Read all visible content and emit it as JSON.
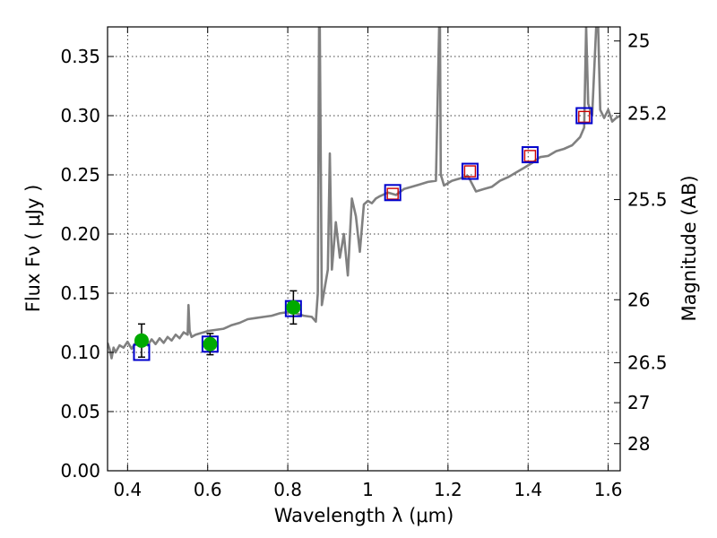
{
  "chart_data": {
    "type": "line",
    "xlabel": "Wavelength  λ (μm)",
    "ylabel": "Flux  Fν  ( μJy )",
    "y2label": "Magnitude (AB)",
    "xlim": [
      0.35,
      1.63
    ],
    "ylim": [
      0.0,
      0.375
    ],
    "grid": true,
    "x_ticks": [
      0.4,
      0.6,
      0.8,
      1.0,
      1.2,
      1.4,
      1.6
    ],
    "x_tick_labels": [
      "0.4",
      "0.6",
      "0.8",
      "1",
      "1.2",
      "1.4",
      "1.6"
    ],
    "y_ticks": [
      0.0,
      0.05,
      0.1,
      0.15,
      0.2,
      0.25,
      0.3,
      0.35
    ],
    "y_tick_labels": [
      "0.00",
      "0.05",
      "0.10",
      "0.15",
      "0.20",
      "0.25",
      "0.30",
      "0.35"
    ],
    "y2_ticks": [
      {
        "label": "25",
        "flux": 0.3631
      },
      {
        "label": "25.2",
        "flux": 0.302
      },
      {
        "label": "25.5",
        "flux": 0.2291
      },
      {
        "label": "26",
        "flux": 0.1445
      },
      {
        "label": "26.5",
        "flux": 0.0912
      },
      {
        "label": "27",
        "flux": 0.0575
      },
      {
        "label": "28",
        "flux": 0.0229
      }
    ],
    "spectrum": {
      "name": "model spectrum",
      "color": "#808080",
      "x": [
        0.35,
        0.355,
        0.36,
        0.365,
        0.37,
        0.38,
        0.39,
        0.4,
        0.41,
        0.42,
        0.43,
        0.44,
        0.45,
        0.46,
        0.47,
        0.48,
        0.49,
        0.5,
        0.51,
        0.52,
        0.53,
        0.54,
        0.55,
        0.552,
        0.555,
        0.56,
        0.57,
        0.58,
        0.59,
        0.6,
        0.62,
        0.64,
        0.66,
        0.68,
        0.7,
        0.72,
        0.74,
        0.76,
        0.78,
        0.8,
        0.82,
        0.84,
        0.86,
        0.87,
        0.875,
        0.878,
        0.88,
        0.885,
        0.89,
        0.9,
        0.905,
        0.91,
        0.915,
        0.92,
        0.93,
        0.94,
        0.95,
        0.96,
        0.97,
        0.98,
        0.99,
        1.0,
        1.01,
        1.02,
        1.03,
        1.05,
        1.07,
        1.09,
        1.11,
        1.13,
        1.15,
        1.17,
        1.178,
        1.18,
        1.182,
        1.185,
        1.19,
        1.21,
        1.23,
        1.25,
        1.27,
        1.29,
        1.31,
        1.33,
        1.35,
        1.37,
        1.39,
        1.41,
        1.43,
        1.45,
        1.47,
        1.49,
        1.51,
        1.53,
        1.54,
        1.545,
        1.55,
        1.56,
        1.57,
        1.575,
        1.58,
        1.59,
        1.6,
        1.61,
        1.62,
        1.63
      ],
      "y": [
        0.108,
        0.103,
        0.095,
        0.104,
        0.1,
        0.106,
        0.104,
        0.109,
        0.103,
        0.108,
        0.105,
        0.11,
        0.106,
        0.111,
        0.107,
        0.112,
        0.108,
        0.113,
        0.11,
        0.115,
        0.112,
        0.117,
        0.115,
        0.14,
        0.118,
        0.113,
        0.115,
        0.116,
        0.117,
        0.118,
        0.119,
        0.12,
        0.123,
        0.125,
        0.128,
        0.129,
        0.13,
        0.131,
        0.133,
        0.134,
        0.133,
        0.131,
        0.13,
        0.126,
        0.15,
        0.375,
        0.375,
        0.14,
        0.15,
        0.17,
        0.268,
        0.17,
        0.19,
        0.21,
        0.18,
        0.2,
        0.165,
        0.23,
        0.215,
        0.185,
        0.225,
        0.228,
        0.226,
        0.23,
        0.232,
        0.235,
        0.233,
        0.238,
        0.24,
        0.242,
        0.244,
        0.245,
        0.375,
        0.375,
        0.25,
        0.247,
        0.241,
        0.245,
        0.247,
        0.249,
        0.236,
        0.238,
        0.24,
        0.245,
        0.248,
        0.252,
        0.256,
        0.26,
        0.265,
        0.266,
        0.27,
        0.272,
        0.275,
        0.282,
        0.29,
        0.375,
        0.31,
        0.3,
        0.375,
        0.375,
        0.305,
        0.298,
        0.305,
        0.295,
        0.298,
        0.3
      ]
    },
    "series": [
      {
        "name": "photometry (green)",
        "color": "#00aa00",
        "x": [
          0.435,
          0.606,
          0.814
        ],
        "y": [
          0.11,
          0.107,
          0.138
        ],
        "yerr": [
          0.014,
          0.009,
          0.014
        ]
      },
      {
        "name": "model photometry (blue squares)",
        "color": "#0000cc",
        "x": [
          0.435,
          0.606,
          0.814,
          1.062,
          1.255,
          1.405,
          1.54
        ],
        "y": [
          0.1,
          0.107,
          0.137,
          0.235,
          0.253,
          0.267,
          0.3
        ]
      },
      {
        "name": "model photometry (red squares)",
        "color": "#cc0000",
        "x": [
          1.062,
          1.255,
          1.405,
          1.54
        ],
        "y": [
          0.234,
          0.253,
          0.266,
          0.299
        ]
      }
    ]
  }
}
